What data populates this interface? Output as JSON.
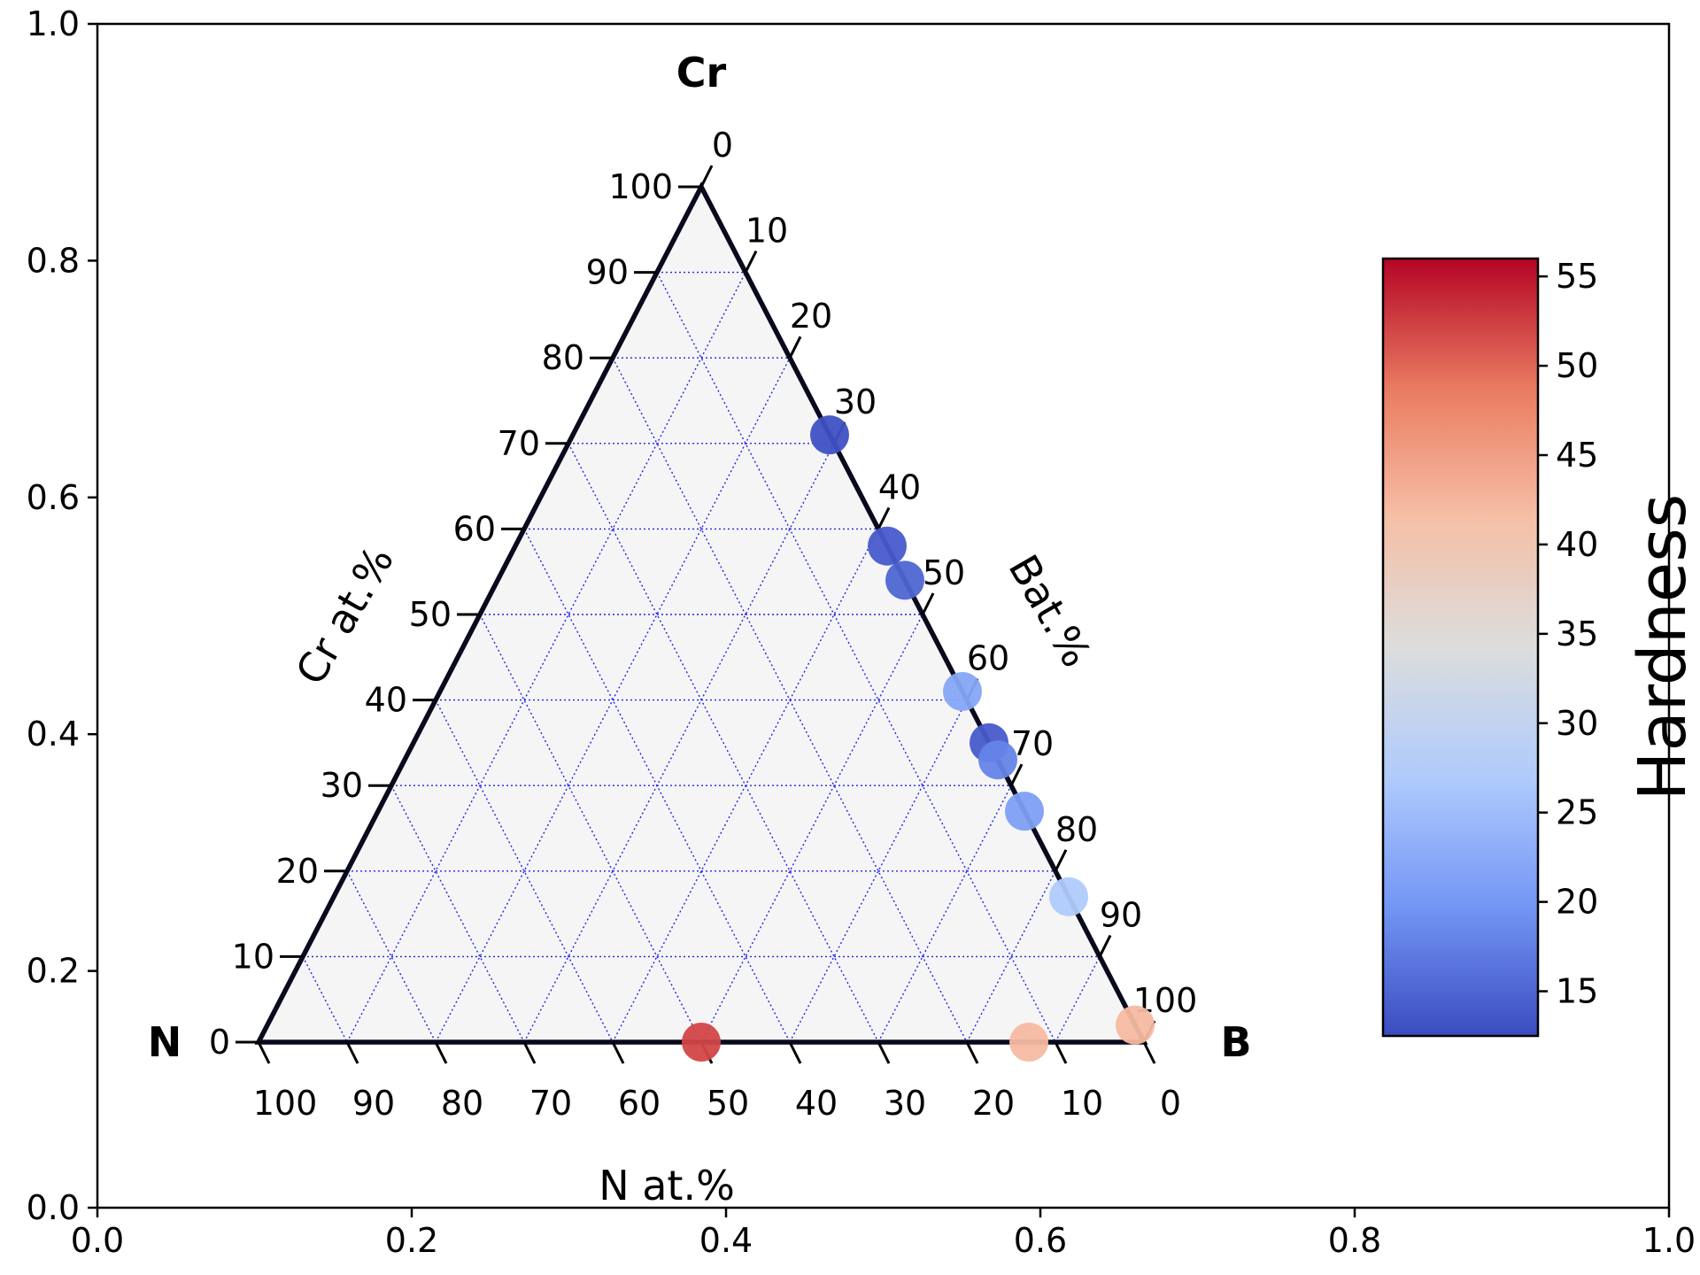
{
  "chart_data": {
    "type": "scatter",
    "subtype": "ternary",
    "frame_axes": {
      "xlim": [
        0.0,
        1.0
      ],
      "ylim": [
        0.0,
        1.0
      ],
      "xticks": [
        "0.0",
        "0.2",
        "0.4",
        "0.6",
        "0.8",
        "1.0"
      ],
      "yticks": [
        "0.0",
        "0.2",
        "0.4",
        "0.6",
        "0.8",
        "1.0"
      ]
    },
    "corners": {
      "top": "Cr",
      "left": "N",
      "right": "B"
    },
    "axis_labels": {
      "left": "Cr at.%",
      "right": "Bat.%",
      "bottom": "N at.%"
    },
    "ternary_ticks": {
      "left": [
        "0",
        "10",
        "20",
        "30",
        "40",
        "50",
        "60",
        "70",
        "80",
        "90",
        "100"
      ],
      "right": [
        "0",
        "10",
        "20",
        "30",
        "40",
        "50",
        "60",
        "70",
        "80",
        "90",
        "100"
      ],
      "bottom": [
        "100",
        "90",
        "80",
        "70",
        "60",
        "50",
        "40",
        "30",
        "20",
        "10",
        "0"
      ]
    },
    "grid": true,
    "colorbar": {
      "label": "Hardness",
      "range": [
        12.5,
        56
      ],
      "ticks": [
        "15",
        "20",
        "25",
        "30",
        "35",
        "40",
        "45",
        "50",
        "55"
      ],
      "colormap": "coolwarm",
      "stops": [
        "#3b4cc0",
        "#7396f5",
        "#b0cbfc",
        "#dcdddd",
        "#f6bfa6",
        "#ea7b60",
        "#b40426"
      ]
    },
    "points": [
      {
        "N": 0,
        "Cr": 71,
        "B": 29,
        "hardness": 13
      },
      {
        "N": 0,
        "Cr": 58,
        "B": 42,
        "hardness": 14
      },
      {
        "N": 0,
        "Cr": 54,
        "B": 46,
        "hardness": 15
      },
      {
        "N": 0,
        "Cr": 41,
        "B": 59,
        "hardness": 22
      },
      {
        "N": 0,
        "Cr": 35,
        "B": 65,
        "hardness": 14
      },
      {
        "N": 0,
        "Cr": 33,
        "B": 67,
        "hardness": 18
      },
      {
        "N": 0,
        "Cr": 27,
        "B": 73,
        "hardness": 21
      },
      {
        "N": 0,
        "Cr": 17,
        "B": 83,
        "hardness": 27
      },
      {
        "N": 50,
        "Cr": 0,
        "B": 50,
        "hardness": 52
      },
      {
        "N": 13,
        "Cr": 0,
        "B": 87,
        "hardness": 42
      },
      {
        "N": 0,
        "Cr": 2,
        "B": 98,
        "hardness": 42
      }
    ]
  }
}
